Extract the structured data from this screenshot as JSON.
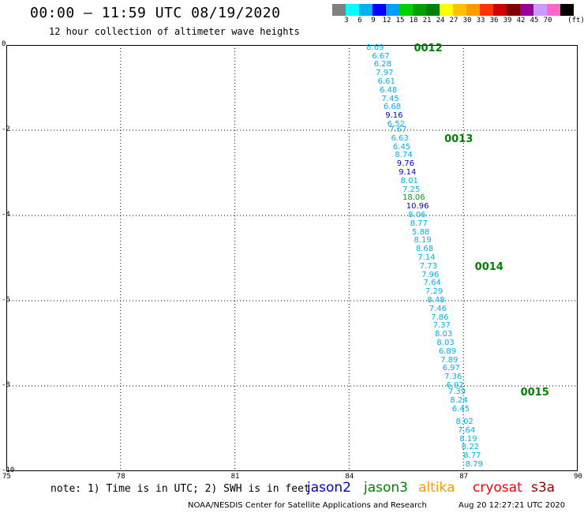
{
  "header": {
    "title": "00:00 – 11:59 UTC 08/19/2020",
    "subtitle": "12 hour collection of altimeter wave heights"
  },
  "color_scale": {
    "labels": [
      "3",
      "6",
      "9",
      "12",
      "15",
      "18",
      "21",
      "24",
      "27",
      "30",
      "33",
      "36",
      "39",
      "42",
      "45",
      "70"
    ],
    "unit": "(ft)",
    "swatches": [
      "#808080",
      "#00ffff",
      "#00b0f0",
      "#0000ff",
      "#00a0ff",
      "#00d000",
      "#00a000",
      "#008000",
      "#ffff00",
      "#ffc000",
      "#ff9900",
      "#ff3300",
      "#cc0000",
      "#800000",
      "#990099",
      "#cc99ff",
      "#ff66cc",
      "#000000"
    ]
  },
  "axes": {
    "x_ticks": [
      "75",
      "78",
      "81",
      "84",
      "87",
      "90"
    ],
    "y_ticks": [
      "0",
      "-2",
      "-4",
      "-6",
      "-8",
      "-10"
    ]
  },
  "chart_data": {
    "type": "scatter",
    "xlim": [
      75,
      90
    ],
    "ylim": [
      -10,
      0
    ],
    "grid": true,
    "passes": [
      {
        "label": "0012",
        "x": 85.7,
        "y": -0.07
      },
      {
        "label": "0013",
        "x": 86.5,
        "y": -2.2
      },
      {
        "label": "0014",
        "x": 87.3,
        "y": -5.2
      },
      {
        "label": "0015",
        "x": 88.5,
        "y": -8.15
      }
    ],
    "points": [
      {
        "v": "8.69",
        "x": 84.45,
        "y": -0.07,
        "c": "#00b0f0"
      },
      {
        "v": "6.67",
        "x": 84.6,
        "y": -0.27,
        "c": "#00b0f0"
      },
      {
        "v": "6.28",
        "x": 84.65,
        "y": -0.47,
        "c": "#00b0f0"
      },
      {
        "v": "7.97",
        "x": 84.7,
        "y": -0.67,
        "c": "#00b0f0"
      },
      {
        "v": "6.61",
        "x": 84.75,
        "y": -0.87,
        "c": "#00b0f0"
      },
      {
        "v": "6.48",
        "x": 84.8,
        "y": -1.07,
        "c": "#00b0f0"
      },
      {
        "v": "7.45",
        "x": 84.85,
        "y": -1.27,
        "c": "#00b0f0"
      },
      {
        "v": "6.68",
        "x": 84.9,
        "y": -1.47,
        "c": "#00b0f0"
      },
      {
        "v": "9.16",
        "x": 84.95,
        "y": -1.67,
        "c": "#0000cc"
      },
      {
        "v": "6.52",
        "x": 85.0,
        "y": -1.87,
        "c": "#00b0f0"
      },
      {
        "v": "7.67",
        "x": 85.05,
        "y": -2.0,
        "c": "#00b0f0"
      },
      {
        "v": "6.63",
        "x": 85.1,
        "y": -2.2,
        "c": "#00b0f0"
      },
      {
        "v": "6.45",
        "x": 85.15,
        "y": -2.4,
        "c": "#00b0f0"
      },
      {
        "v": "8.74",
        "x": 85.2,
        "y": -2.6,
        "c": "#00b0f0"
      },
      {
        "v": "9.76",
        "x": 85.25,
        "y": -2.8,
        "c": "#0000cc"
      },
      {
        "v": "9.14",
        "x": 85.3,
        "y": -3.0,
        "c": "#0000cc"
      },
      {
        "v": "8.01",
        "x": 85.35,
        "y": -3.2,
        "c": "#00b0f0"
      },
      {
        "v": "7.25",
        "x": 85.4,
        "y": -3.4,
        "c": "#00b0f0"
      },
      {
        "v": "18.06",
        "x": 85.4,
        "y": -3.6,
        "c": "#00a000"
      },
      {
        "v": "10.96",
        "x": 85.5,
        "y": -3.8,
        "c": "#0000cc"
      },
      {
        "v": "8.06",
        "x": 85.55,
        "y": -4.0,
        "c": "#00b0f0"
      },
      {
        "v": "8.77",
        "x": 85.6,
        "y": -4.2,
        "c": "#00b0f0"
      },
      {
        "v": "5.88",
        "x": 85.65,
        "y": -4.4,
        "c": "#00b0f0"
      },
      {
        "v": "8.19",
        "x": 85.7,
        "y": -4.6,
        "c": "#00b0f0"
      },
      {
        "v": "8.68",
        "x": 85.75,
        "y": -4.8,
        "c": "#00b0f0"
      },
      {
        "v": "7.14",
        "x": 85.8,
        "y": -5.0,
        "c": "#00b0f0"
      },
      {
        "v": "7.73",
        "x": 85.85,
        "y": -5.2,
        "c": "#00b0f0"
      },
      {
        "v": "7.96",
        "x": 85.9,
        "y": -5.4,
        "c": "#00b0f0"
      },
      {
        "v": "7.64",
        "x": 85.95,
        "y": -5.6,
        "c": "#00b0f0"
      },
      {
        "v": "7.29",
        "x": 86.0,
        "y": -5.8,
        "c": "#00b0f0"
      },
      {
        "v": "8.48",
        "x": 86.05,
        "y": -6.0,
        "c": "#00b0f0"
      },
      {
        "v": "7.46",
        "x": 86.1,
        "y": -6.2,
        "c": "#00b0f0"
      },
      {
        "v": "7.86",
        "x": 86.15,
        "y": -6.4,
        "c": "#00b0f0"
      },
      {
        "v": "7.37",
        "x": 86.2,
        "y": -6.6,
        "c": "#00b0f0"
      },
      {
        "v": "8.03",
        "x": 86.25,
        "y": -6.8,
        "c": "#00b0f0"
      },
      {
        "v": "8.03",
        "x": 86.3,
        "y": -7.0,
        "c": "#00b0f0"
      },
      {
        "v": "6.89",
        "x": 86.35,
        "y": -7.2,
        "c": "#00b0f0"
      },
      {
        "v": "7.89",
        "x": 86.4,
        "y": -7.4,
        "c": "#00b0f0"
      },
      {
        "v": "6.97",
        "x": 86.45,
        "y": -7.6,
        "c": "#00b0f0"
      },
      {
        "v": "7.36",
        "x": 86.5,
        "y": -7.8,
        "c": "#00b0f0"
      },
      {
        "v": "6.92",
        "x": 86.55,
        "y": -8.0,
        "c": "#00b0f0"
      },
      {
        "v": "7.39",
        "x": 86.6,
        "y": -8.15,
        "c": "#00b0f0"
      },
      {
        "v": "8.24",
        "x": 86.65,
        "y": -8.35,
        "c": "#00b0f0"
      },
      {
        "v": "6.45",
        "x": 86.7,
        "y": -8.55,
        "c": "#00b0f0"
      },
      {
        "v": "8.02",
        "x": 86.8,
        "y": -8.85,
        "c": "#00b0f0"
      },
      {
        "v": "7.64",
        "x": 86.85,
        "y": -9.05,
        "c": "#00b0f0"
      },
      {
        "v": "8.19",
        "x": 86.9,
        "y": -9.25,
        "c": "#00b0f0"
      },
      {
        "v": "8.22",
        "x": 86.95,
        "y": -9.45,
        "c": "#00b0f0"
      },
      {
        "v": "8.77",
        "x": 87.0,
        "y": -9.65,
        "c": "#00b0f0"
      },
      {
        "v": "8.79",
        "x": 87.05,
        "y": -9.85,
        "c": "#00b0f0"
      }
    ]
  },
  "footer": {
    "note": "note: 1) Time is in UTC; 2) SWH is in feet",
    "legend": [
      {
        "label": "jason2",
        "color": "#0000cc"
      },
      {
        "label": "jason3",
        "color": "#008000"
      },
      {
        "label": "altika",
        "color": "#ff9900"
      },
      {
        "label": "cryosat",
        "color": "#ff0000"
      },
      {
        "label": "s3a",
        "color": "#990000"
      }
    ],
    "credit": "NOAA/NESDIS Center for Satellite Applications and Research",
    "timestamp": "Aug 20 12:27:21 UTC 2020"
  }
}
